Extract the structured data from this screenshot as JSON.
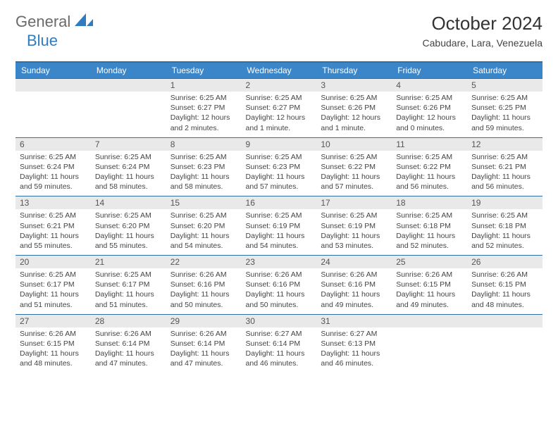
{
  "brand": {
    "general": "General",
    "blue": "Blue"
  },
  "title": "October 2024",
  "subtitle": "Cabudare, Lara, Venezuela",
  "day_headers": [
    "Sunday",
    "Monday",
    "Tuesday",
    "Wednesday",
    "Thursday",
    "Friday",
    "Saturday"
  ],
  "style": {
    "header_bg": "#3b86c8",
    "header_text": "#ffffff",
    "rule_color": "#2f6ea6",
    "daynum_bg": "#e9e9e9",
    "body_color": "#444444",
    "title_fontsize": 26,
    "subtitle_fontsize": 14,
    "cell_fontsize": 10.5
  },
  "weeks": [
    [
      {
        "n": "",
        "sunrise": "",
        "sunset": "",
        "daylight": ""
      },
      {
        "n": "",
        "sunrise": "",
        "sunset": "",
        "daylight": ""
      },
      {
        "n": "1",
        "sunrise": "Sunrise: 6:25 AM",
        "sunset": "Sunset: 6:27 PM",
        "daylight": "Daylight: 12 hours and 2 minutes."
      },
      {
        "n": "2",
        "sunrise": "Sunrise: 6:25 AM",
        "sunset": "Sunset: 6:27 PM",
        "daylight": "Daylight: 12 hours and 1 minute."
      },
      {
        "n": "3",
        "sunrise": "Sunrise: 6:25 AM",
        "sunset": "Sunset: 6:26 PM",
        "daylight": "Daylight: 12 hours and 1 minute."
      },
      {
        "n": "4",
        "sunrise": "Sunrise: 6:25 AM",
        "sunset": "Sunset: 6:26 PM",
        "daylight": "Daylight: 12 hours and 0 minutes."
      },
      {
        "n": "5",
        "sunrise": "Sunrise: 6:25 AM",
        "sunset": "Sunset: 6:25 PM",
        "daylight": "Daylight: 11 hours and 59 minutes."
      }
    ],
    [
      {
        "n": "6",
        "sunrise": "Sunrise: 6:25 AM",
        "sunset": "Sunset: 6:24 PM",
        "daylight": "Daylight: 11 hours and 59 minutes."
      },
      {
        "n": "7",
        "sunrise": "Sunrise: 6:25 AM",
        "sunset": "Sunset: 6:24 PM",
        "daylight": "Daylight: 11 hours and 58 minutes."
      },
      {
        "n": "8",
        "sunrise": "Sunrise: 6:25 AM",
        "sunset": "Sunset: 6:23 PM",
        "daylight": "Daylight: 11 hours and 58 minutes."
      },
      {
        "n": "9",
        "sunrise": "Sunrise: 6:25 AM",
        "sunset": "Sunset: 6:23 PM",
        "daylight": "Daylight: 11 hours and 57 minutes."
      },
      {
        "n": "10",
        "sunrise": "Sunrise: 6:25 AM",
        "sunset": "Sunset: 6:22 PM",
        "daylight": "Daylight: 11 hours and 57 minutes."
      },
      {
        "n": "11",
        "sunrise": "Sunrise: 6:25 AM",
        "sunset": "Sunset: 6:22 PM",
        "daylight": "Daylight: 11 hours and 56 minutes."
      },
      {
        "n": "12",
        "sunrise": "Sunrise: 6:25 AM",
        "sunset": "Sunset: 6:21 PM",
        "daylight": "Daylight: 11 hours and 56 minutes."
      }
    ],
    [
      {
        "n": "13",
        "sunrise": "Sunrise: 6:25 AM",
        "sunset": "Sunset: 6:21 PM",
        "daylight": "Daylight: 11 hours and 55 minutes."
      },
      {
        "n": "14",
        "sunrise": "Sunrise: 6:25 AM",
        "sunset": "Sunset: 6:20 PM",
        "daylight": "Daylight: 11 hours and 55 minutes."
      },
      {
        "n": "15",
        "sunrise": "Sunrise: 6:25 AM",
        "sunset": "Sunset: 6:20 PM",
        "daylight": "Daylight: 11 hours and 54 minutes."
      },
      {
        "n": "16",
        "sunrise": "Sunrise: 6:25 AM",
        "sunset": "Sunset: 6:19 PM",
        "daylight": "Daylight: 11 hours and 54 minutes."
      },
      {
        "n": "17",
        "sunrise": "Sunrise: 6:25 AM",
        "sunset": "Sunset: 6:19 PM",
        "daylight": "Daylight: 11 hours and 53 minutes."
      },
      {
        "n": "18",
        "sunrise": "Sunrise: 6:25 AM",
        "sunset": "Sunset: 6:18 PM",
        "daylight": "Daylight: 11 hours and 52 minutes."
      },
      {
        "n": "19",
        "sunrise": "Sunrise: 6:25 AM",
        "sunset": "Sunset: 6:18 PM",
        "daylight": "Daylight: 11 hours and 52 minutes."
      }
    ],
    [
      {
        "n": "20",
        "sunrise": "Sunrise: 6:25 AM",
        "sunset": "Sunset: 6:17 PM",
        "daylight": "Daylight: 11 hours and 51 minutes."
      },
      {
        "n": "21",
        "sunrise": "Sunrise: 6:25 AM",
        "sunset": "Sunset: 6:17 PM",
        "daylight": "Daylight: 11 hours and 51 minutes."
      },
      {
        "n": "22",
        "sunrise": "Sunrise: 6:26 AM",
        "sunset": "Sunset: 6:16 PM",
        "daylight": "Daylight: 11 hours and 50 minutes."
      },
      {
        "n": "23",
        "sunrise": "Sunrise: 6:26 AM",
        "sunset": "Sunset: 6:16 PM",
        "daylight": "Daylight: 11 hours and 50 minutes."
      },
      {
        "n": "24",
        "sunrise": "Sunrise: 6:26 AM",
        "sunset": "Sunset: 6:16 PM",
        "daylight": "Daylight: 11 hours and 49 minutes."
      },
      {
        "n": "25",
        "sunrise": "Sunrise: 6:26 AM",
        "sunset": "Sunset: 6:15 PM",
        "daylight": "Daylight: 11 hours and 49 minutes."
      },
      {
        "n": "26",
        "sunrise": "Sunrise: 6:26 AM",
        "sunset": "Sunset: 6:15 PM",
        "daylight": "Daylight: 11 hours and 48 minutes."
      }
    ],
    [
      {
        "n": "27",
        "sunrise": "Sunrise: 6:26 AM",
        "sunset": "Sunset: 6:15 PM",
        "daylight": "Daylight: 11 hours and 48 minutes."
      },
      {
        "n": "28",
        "sunrise": "Sunrise: 6:26 AM",
        "sunset": "Sunset: 6:14 PM",
        "daylight": "Daylight: 11 hours and 47 minutes."
      },
      {
        "n": "29",
        "sunrise": "Sunrise: 6:26 AM",
        "sunset": "Sunset: 6:14 PM",
        "daylight": "Daylight: 11 hours and 47 minutes."
      },
      {
        "n": "30",
        "sunrise": "Sunrise: 6:27 AM",
        "sunset": "Sunset: 6:14 PM",
        "daylight": "Daylight: 11 hours and 46 minutes."
      },
      {
        "n": "31",
        "sunrise": "Sunrise: 6:27 AM",
        "sunset": "Sunset: 6:13 PM",
        "daylight": "Daylight: 11 hours and 46 minutes."
      },
      {
        "n": "",
        "sunrise": "",
        "sunset": "",
        "daylight": ""
      },
      {
        "n": "",
        "sunrise": "",
        "sunset": "",
        "daylight": ""
      }
    ]
  ]
}
